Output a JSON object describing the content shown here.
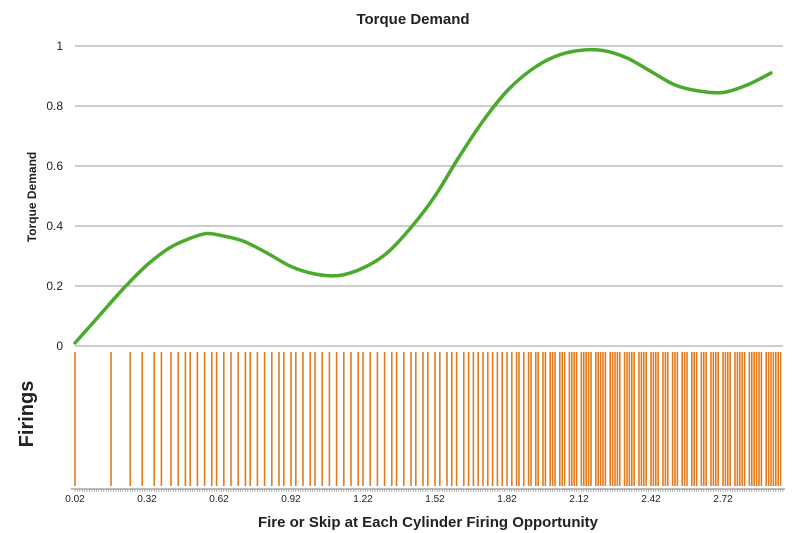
{
  "chart_data": [
    {
      "type": "line",
      "title": "Torque Demand",
      "ylabel": "Torque Demand",
      "ylim": [
        0,
        1
      ],
      "yticks": [
        "0",
        "0.2",
        "0.4",
        "0.6",
        "0.8",
        "1"
      ],
      "grid": true,
      "line_color": "#4aaa2c",
      "series": [
        {
          "x": [
            0.02,
            0.12,
            0.22,
            0.32,
            0.42,
            0.52,
            0.57,
            0.62,
            0.72,
            0.82,
            0.92,
            1.02,
            1.12,
            1.22,
            1.32,
            1.42,
            1.52,
            1.62,
            1.72,
            1.82,
            1.92,
            2.02,
            2.12,
            2.22,
            2.32,
            2.42,
            2.52,
            2.62,
            2.72,
            2.82,
            2.92
          ],
          "y": [
            0.01,
            0.1,
            0.19,
            0.27,
            0.33,
            0.365,
            0.375,
            0.37,
            0.35,
            0.31,
            0.265,
            0.24,
            0.235,
            0.26,
            0.31,
            0.395,
            0.5,
            0.63,
            0.75,
            0.85,
            0.92,
            0.965,
            0.985,
            0.985,
            0.96,
            0.915,
            0.87,
            0.85,
            0.845,
            0.87,
            0.91
          ]
        }
      ]
    },
    {
      "type": "bar",
      "ylabel": "Firings",
      "xlabel": "Fire or Skip at Each Cylinder Firing Opportunity",
      "xlim": [
        0.02,
        2.97
      ],
      "xticks": [
        "0.02",
        "0.32",
        "0.62",
        "0.92",
        "1.22",
        "1.52",
        "1.82",
        "2.12",
        "2.42",
        "2.72"
      ],
      "bar_color": "#e07b20",
      "firings": [
        0.02,
        0.17,
        0.25,
        0.3,
        0.35,
        0.38,
        0.42,
        0.45,
        0.48,
        0.5,
        0.53,
        0.56,
        0.59,
        0.61,
        0.64,
        0.67,
        0.7,
        0.73,
        0.75,
        0.78,
        0.81,
        0.84,
        0.87,
        0.89,
        0.92,
        0.94,
        0.97,
        1.0,
        1.02,
        1.05,
        1.08,
        1.11,
        1.14,
        1.17,
        1.2,
        1.22,
        1.25,
        1.28,
        1.31,
        1.34,
        1.36,
        1.39,
        1.42,
        1.44,
        1.47,
        1.49,
        1.52,
        1.54,
        1.57,
        1.59,
        1.61,
        1.64,
        1.66,
        1.68,
        1.7,
        1.72,
        1.74,
        1.76,
        1.78,
        1.8,
        1.82,
        1.84,
        1.86,
        1.87,
        1.89,
        1.91,
        1.92,
        1.94,
        1.95,
        1.97,
        1.98,
        2.0,
        2.01,
        2.02,
        2.04,
        2.05,
        2.06,
        2.08,
        2.09,
        2.1,
        2.11,
        2.13,
        2.14,
        2.15,
        2.16,
        2.17,
        2.19,
        2.2,
        2.21,
        2.22,
        2.23,
        2.25,
        2.26,
        2.27,
        2.28,
        2.29,
        2.31,
        2.32,
        2.33,
        2.34,
        2.35,
        2.37,
        2.38,
        2.39,
        2.4,
        2.42,
        2.43,
        2.44,
        2.45,
        2.47,
        2.48,
        2.49,
        2.51,
        2.52,
        2.53,
        2.55,
        2.56,
        2.57,
        2.59,
        2.6,
        2.61,
        2.63,
        2.64,
        2.65,
        2.67,
        2.68,
        2.69,
        2.7,
        2.72,
        2.73,
        2.74,
        2.75,
        2.77,
        2.78,
        2.79,
        2.8,
        2.81,
        2.83,
        2.84,
        2.85,
        2.86,
        2.87,
        2.88,
        2.9,
        2.91,
        2.92,
        2.93,
        2.94,
        2.95,
        2.96
      ]
    }
  ]
}
